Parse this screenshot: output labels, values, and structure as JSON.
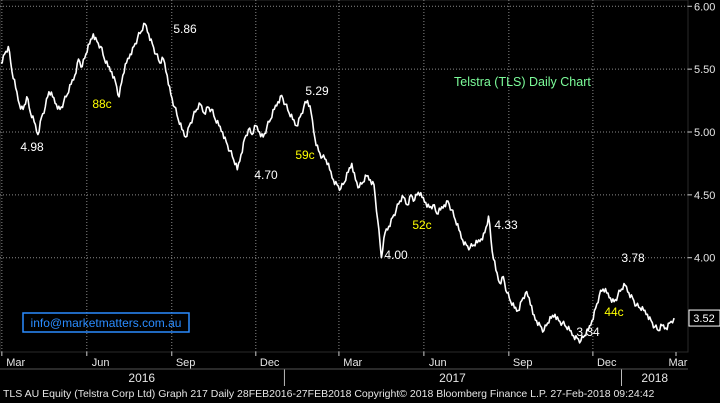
{
  "chart_data": {
    "type": "line",
    "title": "Telstra (TLS) Daily Chart",
    "title_color": "#7CFC9A",
    "watermark": "info@marketmatters.com.au",
    "watermark_color": "#2a8cff",
    "line_color": "#ffffff",
    "grid": "dotted",
    "background": "#000000",
    "ylim": [
      3.25,
      6.05
    ],
    "y_ticks": [
      "6.00",
      "5.50",
      "5.00",
      "4.50",
      "4.00",
      "3.52"
    ],
    "last_price": "3.52",
    "x_range": [
      "2016-02-28",
      "2018-03-14"
    ],
    "month_labels": [
      "Mar",
      "Jun",
      "Sep",
      "Dec",
      "Mar",
      "Jun",
      "Sep",
      "Dec",
      "Mar"
    ],
    "year_labels": [
      "2016",
      "2017",
      "2018"
    ],
    "price_annotations": [
      "5.86",
      "4.98",
      "4.70",
      "5.29",
      "4.00",
      "4.33",
      "3.34",
      "3.78"
    ],
    "move_annotations": [
      "88c",
      "59c",
      "52c",
      "44c"
    ],
    "annotation_colors": {
      "price": "#ffffff",
      "move": "#ffff00"
    },
    "series": [
      {
        "x": [
          "2016-02-29",
          "2016-03-04",
          "2016-03-08",
          "2016-03-12",
          "2016-03-16",
          "2016-03-20",
          "2016-03-24",
          "2016-03-28",
          "2016-04-01",
          "2016-04-05",
          "2016-04-09",
          "2016-04-13",
          "2016-04-17",
          "2016-04-21",
          "2016-04-25",
          "2016-04-29",
          "2016-05-03",
          "2016-05-07",
          "2016-05-11",
          "2016-05-15",
          "2016-05-19",
          "2016-05-23",
          "2016-05-27",
          "2016-05-31",
          "2016-06-04",
          "2016-06-08",
          "2016-06-12",
          "2016-06-16",
          "2016-06-20",
          "2016-06-24",
          "2016-06-28",
          "2016-07-02",
          "2016-07-06",
          "2016-07-10",
          "2016-07-14",
          "2016-07-18",
          "2016-07-22",
          "2016-07-26",
          "2016-07-30",
          "2016-08-03",
          "2016-08-07",
          "2016-08-11",
          "2016-08-15",
          "2016-08-19",
          "2016-08-23",
          "2016-08-27",
          "2016-08-31",
          "2016-09-04",
          "2016-09-08",
          "2016-09-12",
          "2016-09-16",
          "2016-09-20",
          "2016-09-24",
          "2016-09-28",
          "2016-10-02",
          "2016-10-06",
          "2016-10-10",
          "2016-10-14",
          "2016-10-18",
          "2016-10-22",
          "2016-10-26",
          "2016-10-30",
          "2016-11-03",
          "2016-11-07",
          "2016-11-11",
          "2016-11-15",
          "2016-11-19",
          "2016-11-23",
          "2016-11-27",
          "2016-12-01",
          "2016-12-05",
          "2016-12-09",
          "2016-12-13",
          "2016-12-17",
          "2016-12-21",
          "2016-12-25",
          "2016-12-29",
          "2017-01-02",
          "2017-01-06",
          "2017-01-10",
          "2017-01-14",
          "2017-01-18",
          "2017-01-22",
          "2017-01-26",
          "2017-01-30",
          "2017-02-03",
          "2017-02-07",
          "2017-02-11",
          "2017-02-15",
          "2017-02-19",
          "2017-02-23",
          "2017-02-27",
          "2017-03-03",
          "2017-03-07",
          "2017-03-11",
          "2017-03-15",
          "2017-03-19",
          "2017-03-23",
          "2017-03-27",
          "2017-03-31",
          "2017-04-04",
          "2017-04-08",
          "2017-04-12",
          "2017-04-16",
          "2017-04-20",
          "2017-04-24",
          "2017-04-28",
          "2017-05-02",
          "2017-05-06",
          "2017-05-10",
          "2017-05-14",
          "2017-05-18",
          "2017-05-22",
          "2017-05-26",
          "2017-05-30",
          "2017-06-03",
          "2017-06-07",
          "2017-06-11",
          "2017-06-15",
          "2017-06-19",
          "2017-06-23",
          "2017-06-27",
          "2017-07-01",
          "2017-07-05",
          "2017-07-09",
          "2017-07-13",
          "2017-07-17",
          "2017-07-21",
          "2017-07-25",
          "2017-07-29",
          "2017-08-02",
          "2017-08-06",
          "2017-08-10",
          "2017-08-14",
          "2017-08-18",
          "2017-08-22",
          "2017-08-26",
          "2017-08-30",
          "2017-09-03",
          "2017-09-07",
          "2017-09-11",
          "2017-09-15",
          "2017-09-19",
          "2017-09-23",
          "2017-09-27",
          "2017-10-01",
          "2017-10-05",
          "2017-10-09",
          "2017-10-13",
          "2017-10-17",
          "2017-10-21",
          "2017-10-25",
          "2017-10-29",
          "2017-11-02",
          "2017-11-06",
          "2017-11-10",
          "2017-11-14",
          "2017-11-18",
          "2017-11-22",
          "2017-11-26",
          "2017-11-30",
          "2017-12-04",
          "2017-12-08",
          "2017-12-12",
          "2017-12-16",
          "2017-12-20",
          "2017-12-24",
          "2017-12-28",
          "2018-01-01",
          "2018-01-05",
          "2018-01-09",
          "2018-01-13",
          "2018-01-17",
          "2018-01-21",
          "2018-01-25",
          "2018-01-29",
          "2018-02-02",
          "2018-02-06",
          "2018-02-10",
          "2018-02-14",
          "2018-02-18",
          "2018-02-22",
          "2018-02-27"
        ],
        "values": [
          5.55,
          5.62,
          5.68,
          5.48,
          5.35,
          5.22,
          5.18,
          5.28,
          5.15,
          5.08,
          4.98,
          5.12,
          5.2,
          5.32,
          5.28,
          5.22,
          5.18,
          5.24,
          5.3,
          5.38,
          5.45,
          5.58,
          5.52,
          5.62,
          5.7,
          5.78,
          5.72,
          5.68,
          5.58,
          5.52,
          5.48,
          5.4,
          5.28,
          5.45,
          5.55,
          5.62,
          5.68,
          5.75,
          5.8,
          5.86,
          5.78,
          5.7,
          5.62,
          5.55,
          5.58,
          5.45,
          5.3,
          5.2,
          5.1,
          5.02,
          4.96,
          5.05,
          5.12,
          5.18,
          5.22,
          5.15,
          5.2,
          5.18,
          5.1,
          5.05,
          5.0,
          4.92,
          4.85,
          4.78,
          4.7,
          4.82,
          4.95,
          5.02,
          4.98,
          5.05,
          5.0,
          4.96,
          5.04,
          5.1,
          5.18,
          5.24,
          5.29,
          5.22,
          5.15,
          5.1,
          5.05,
          5.12,
          5.2,
          5.25,
          5.15,
          4.95,
          4.85,
          4.8,
          4.78,
          4.7,
          4.62,
          4.58,
          4.55,
          4.6,
          4.68,
          4.75,
          4.62,
          4.56,
          4.6,
          4.65,
          4.62,
          4.58,
          4.3,
          4.0,
          4.2,
          4.25,
          4.32,
          4.38,
          4.45,
          4.48,
          4.42,
          4.5,
          4.46,
          4.52,
          4.48,
          4.44,
          4.4,
          4.42,
          4.35,
          4.38,
          4.42,
          4.45,
          4.38,
          4.3,
          4.22,
          4.14,
          4.1,
          4.08,
          4.1,
          4.12,
          4.15,
          4.2,
          4.33,
          4.05,
          3.9,
          3.8,
          3.85,
          3.72,
          3.65,
          3.6,
          3.58,
          3.66,
          3.72,
          3.68,
          3.55,
          3.5,
          3.46,
          3.42,
          3.48,
          3.52,
          3.55,
          3.5,
          3.48,
          3.45,
          3.42,
          3.38,
          3.36,
          3.34,
          3.38,
          3.42,
          3.5,
          3.6,
          3.7,
          3.75,
          3.72,
          3.68,
          3.65,
          3.7,
          3.75,
          3.78,
          3.72,
          3.68,
          3.62,
          3.6,
          3.58,
          3.55,
          3.5,
          3.45,
          3.42,
          3.46,
          3.44,
          3.48,
          3.52
        ]
      }
    ]
  },
  "footer": {
    "text": "TLS AU Equity (Telstra Corp Ltd) Graph 217  Daily 28FEB2016-27FEB2018 Copyright© 2018 Bloomberg Finance L.P.  27-Feb-2018 09:24:42"
  }
}
